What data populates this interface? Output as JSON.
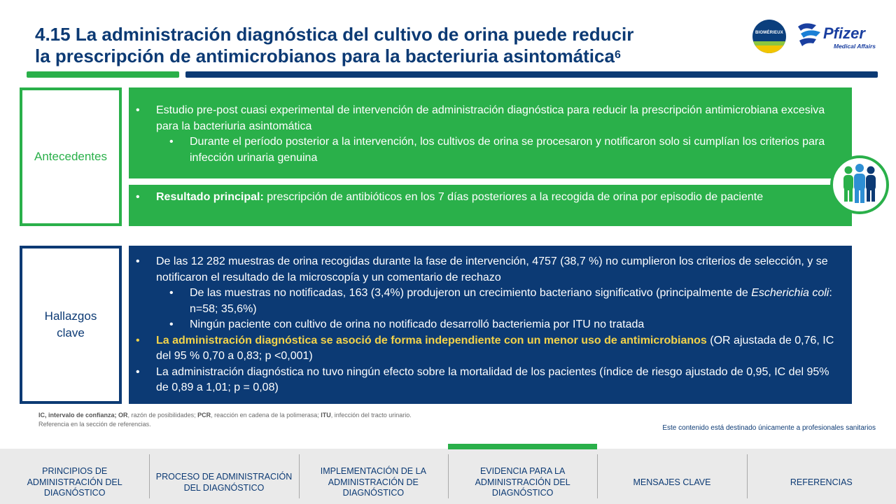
{
  "title": {
    "line1": "4.15 La administración diagnóstica del cultivo de orina puede reducir",
    "line2": "la prescripción de antimicrobianos para la bacteriuria asintomática",
    "ref": "6"
  },
  "logos": {
    "biomerieux": "BIOMÉRIEUX",
    "pfizer": "Pfizer",
    "pfizer_sub": "Medical Affairs"
  },
  "antecedentes": {
    "label": "Antecedentes",
    "bullet1": "Estudio pre-post cuasi experimental de intervención de administración diagnóstica para reducir la prescripción antimicrobiana excesiva para la bacteriuria asintomática",
    "sub1": "Durante el período posterior a la intervención, los cultivos de orina se procesaron y notificaron solo si cumplían los criterios para infección urinaria genuina",
    "result_bold": "Resultado principal:",
    "result_text": " prescripción de antibióticos en los 7 días posteriores a la recogida de orina por episodio de paciente"
  },
  "hallazgos": {
    "label_line1": "Hallazgos",
    "label_line2": "clave",
    "bullet1": "De las 12 282 muestras de orina recogidas durante la fase de intervención, 4757 (38,7 %) no cumplieron los criterios de selección, y se notificaron el resultado de la microscopía y un comentario de rechazo",
    "sub1_a": "De las muestras no notificadas, 163 (3,4%) produjeron un crecimiento bacteriano significativo (principalmente de ",
    "sub1_italic": "Escherichia coli",
    "sub1_b": ": n=58; 35,6%)",
    "sub2": "Ningún paciente con cultivo de orina no notificado desarrolló bacteriemia por ITU no tratada",
    "bullet2_hl": "La administración diagnóstica se asoció de forma independiente con un menor uso de antimicrobianos",
    "bullet2_rest": " (OR ajustada de 0,76, IC del 95 % 0,70 a 0,83; p <0,001)",
    "bullet3": "La administración diagnóstica no tuvo ningún efecto sobre la mortalidad de los pacientes (índice de riesgo ajustado de 0,95, IC del 95% de 0,89 a 1,01; p = 0,08)"
  },
  "footnote": {
    "abbr_ic": "IC, intervalo de confianza;",
    "abbr_or_b": " OR",
    "abbr_or": ", razón de posibilidades;",
    "abbr_pcr_b": " PCR",
    "abbr_pcr": ", reacción en cadena de la polimerasa;",
    "abbr_itu_b": " ITU",
    "abbr_itu": ", infección del tracto urinario.",
    "ref_line": "Referencia en la sección de referencias."
  },
  "audience": "Este contenido está destinado únicamente a profesionales sanitarios",
  "nav": [
    {
      "label": "PRINCIPIOS DE ADMINISTRACIÓN DEL DIAGNÓSTICO",
      "active": false
    },
    {
      "label": "PROCESO DE ADMINISTRACIÓN DEL DIAGNÓSTICO",
      "active": false
    },
    {
      "label": "IMPLEMENTACIÓN DE LA ADMINISTRACIÓN DE DIAGNÓSTICO",
      "active": false
    },
    {
      "label": "EVIDENCIA PARA LA ADMINISTRACIÓN DEL DIAGNÓSTICO",
      "active": true
    },
    {
      "label": "MENSAJES CLAVE",
      "active": false
    },
    {
      "label": "REFERENCIAS",
      "active": false
    }
  ],
  "colors": {
    "navy": "#0c3a74",
    "green": "#2ab04a",
    "highlight": "#f3d34a"
  },
  "icons": {
    "people": "people-group-icon"
  }
}
